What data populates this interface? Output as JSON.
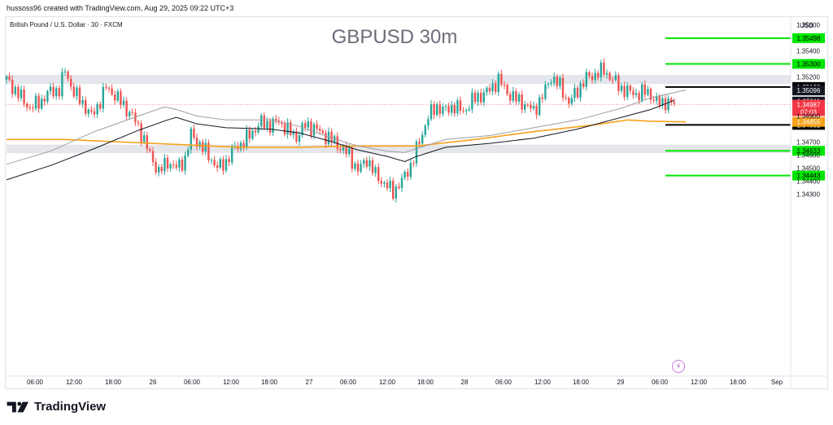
{
  "header": {
    "attribution": "hussoss96 created with TradingView.com, Aug 29, 2025 09:22 UTC+3",
    "symbol": "British Pound / U.S. Dollar · 30 · FXCM",
    "currency": "USD"
  },
  "footer": {
    "brand": "TradingView"
  },
  "icons": {
    "logo": "tradingview-logo-icon",
    "event": "lightning-icon"
  },
  "colors": {
    "up": "#26a69a",
    "down": "#ef5350",
    "support_resistance": "#00e600",
    "key_level": "#000000",
    "ema": "#f7a21b",
    "zone": "#e4e6eb",
    "price_label": "#f23645",
    "ema_label": "#f7a21b"
  },
  "chart_data": {
    "type": "candlestick",
    "title": "GBPUSD 30m",
    "ylim": [
      1.343,
      1.3565
    ],
    "y_ticks": [
      "1.35600",
      "1.35400",
      "1.35200",
      "1.34900",
      "1.34700",
      "1.34600",
      "1.34500",
      "1.34400",
      "1.34300"
    ],
    "x_ticks": [
      "06:00",
      "12:00",
      "18:00",
      "26",
      "06:00",
      "12:00",
      "18:00",
      "27",
      "06:00",
      "12:00",
      "18:00",
      "28",
      "06:00",
      "12:00",
      "18:00",
      "29",
      "06:00",
      "12:00",
      "18:00",
      "Sep"
    ],
    "zones": [
      {
        "from": 1.35145,
        "to": 1.35215
      },
      {
        "from": 1.34615,
        "to": 1.3468
      }
    ],
    "levels": [
      {
        "price": 1.35498,
        "label": "1.35498",
        "kind": "target"
      },
      {
        "price": 1.353,
        "label": "1.35300",
        "kind": "target"
      },
      {
        "price": 1.35123,
        "label": "1.35123",
        "kind": "key"
      },
      {
        "price": 1.34832,
        "label": "1.34832",
        "kind": "key"
      },
      {
        "price": 1.34633,
        "label": "1.34633",
        "kind": "target"
      },
      {
        "price": 1.34443,
        "label": "1.34443",
        "kind": "target"
      }
    ],
    "axis_labels": [
      {
        "price": 1.35096,
        "label": "1.35096",
        "style": "dark"
      },
      {
        "price": 1.35011,
        "label": "1.35011",
        "style": "dark"
      },
      {
        "price": 1.34987,
        "label": "1.34987",
        "sub": "07:03",
        "style": "red"
      },
      {
        "price": 1.34855,
        "label": "1.34855",
        "style": "orange"
      }
    ],
    "current_price": 1.34987,
    "close_path": [
      [
        0,
        1.3518
      ],
      [
        4,
        1.3507
      ],
      [
        8,
        1.3496
      ],
      [
        12,
        1.3502
      ],
      [
        15,
        1.3509
      ],
      [
        18,
        1.351
      ],
      [
        20,
        1.3525
      ],
      [
        23,
        1.3508
      ],
      [
        26,
        1.35
      ],
      [
        29,
        1.349
      ],
      [
        31,
        1.3497
      ],
      [
        34,
        1.3512
      ],
      [
        37,
        1.3506
      ],
      [
        40,
        1.3498
      ],
      [
        43,
        1.349
      ],
      [
        46,
        1.3477
      ],
      [
        49,
        1.346
      ],
      [
        52,
        1.3447
      ],
      [
        55,
        1.3455
      ],
      [
        58,
        1.345
      ],
      [
        61,
        1.3457
      ],
      [
        63,
        1.3476
      ],
      [
        66,
        1.3468
      ],
      [
        69,
        1.346
      ],
      [
        72,
        1.345
      ],
      [
        75,
        1.3455
      ],
      [
        78,
        1.3466
      ],
      [
        81,
        1.347
      ],
      [
        84,
        1.3478
      ],
      [
        87,
        1.3485
      ],
      [
        90,
        1.3483
      ],
      [
        93,
        1.3486
      ],
      [
        96,
        1.3479
      ],
      [
        99,
        1.3474
      ],
      [
        102,
        1.3483
      ],
      [
        105,
        1.3481
      ],
      [
        108,
        1.3476
      ],
      [
        111,
        1.3472
      ],
      [
        114,
        1.3466
      ],
      [
        117,
        1.346
      ],
      [
        120,
        1.3448
      ],
      [
        123,
        1.3457
      ],
      [
        126,
        1.3445
      ],
      [
        129,
        1.3438
      ],
      [
        132,
        1.3432
      ],
      [
        135,
        1.344
      ],
      [
        138,
        1.3452
      ],
      [
        141,
        1.347
      ],
      [
        144,
        1.349
      ],
      [
        147,
        1.3497
      ],
      [
        150,
        1.3494
      ],
      [
        153,
        1.3498
      ],
      [
        156,
        1.3493
      ],
      [
        159,
        1.3502
      ],
      [
        162,
        1.3506
      ],
      [
        165,
        1.351
      ],
      [
        168,
        1.3518
      ],
      [
        171,
        1.3508
      ],
      [
        174,
        1.3503
      ],
      [
        177,
        1.3499
      ],
      [
        180,
        1.3494
      ],
      [
        183,
        1.3505
      ],
      [
        186,
        1.352
      ],
      [
        189,
        1.3513
      ],
      [
        192,
        1.35
      ],
      [
        195,
        1.351
      ],
      [
        198,
        1.3519
      ],
      [
        201,
        1.3522
      ],
      [
        204,
        1.3525
      ],
      [
        207,
        1.3518
      ],
      [
        210,
        1.3511
      ],
      [
        213,
        1.3508
      ],
      [
        216,
        1.3507
      ],
      [
        219,
        1.3509
      ],
      [
        222,
        1.35
      ],
      [
        225,
        1.3501
      ],
      [
        228,
        1.3499
      ]
    ],
    "series": [
      {
        "name": "",
        "color": "#f7a21b",
        "points": [
          [
            0,
            1.3472
          ],
          [
            20,
            1.3472
          ],
          [
            40,
            1.347
          ],
          [
            60,
            1.3468
          ],
          [
            80,
            1.3466
          ],
          [
            100,
            1.3466
          ],
          [
            120,
            1.3467
          ],
          [
            140,
            1.3467
          ],
          [
            160,
            1.3472
          ],
          [
            180,
            1.3478
          ],
          [
            200,
            1.3483
          ],
          [
            212,
            1.3487
          ],
          [
            220,
            1.3486
          ],
          [
            232,
            1.34855
          ]
        ]
      },
      {
        "name": "",
        "color": "#131722",
        "points": [
          [
            0,
            1.3441
          ],
          [
            15,
            1.3452
          ],
          [
            30,
            1.3465
          ],
          [
            45,
            1.3479
          ],
          [
            55,
            1.3487
          ],
          [
            58,
            1.3489
          ],
          [
            65,
            1.3484
          ],
          [
            75,
            1.3481
          ],
          [
            90,
            1.348
          ],
          [
            100,
            1.3477
          ],
          [
            110,
            1.3471
          ],
          [
            120,
            1.3464
          ],
          [
            130,
            1.3459
          ],
          [
            136,
            1.3455
          ],
          [
            140,
            1.3459
          ],
          [
            150,
            1.3466
          ],
          [
            165,
            1.3469
          ],
          [
            180,
            1.3473
          ],
          [
            195,
            1.348
          ],
          [
            210,
            1.3489
          ],
          [
            220,
            1.3495
          ],
          [
            228,
            1.3502
          ]
        ]
      },
      {
        "name": "",
        "color": "#9e9e9e",
        "points": [
          [
            0,
            1.3453
          ],
          [
            15,
            1.3463
          ],
          [
            30,
            1.3478
          ],
          [
            45,
            1.349
          ],
          [
            54,
            1.3497
          ],
          [
            58,
            1.3495
          ],
          [
            65,
            1.349
          ],
          [
            75,
            1.3487
          ],
          [
            90,
            1.3487
          ],
          [
            100,
            1.3482
          ],
          [
            110,
            1.3474
          ],
          [
            120,
            1.3467
          ],
          [
            130,
            1.3463
          ],
          [
            136,
            1.3462
          ],
          [
            140,
            1.3465
          ],
          [
            150,
            1.3472
          ],
          [
            165,
            1.3475
          ],
          [
            180,
            1.3481
          ],
          [
            195,
            1.3487
          ],
          [
            210,
            1.3496
          ],
          [
            220,
            1.3504
          ],
          [
            232,
            1.351
          ]
        ]
      }
    ]
  }
}
